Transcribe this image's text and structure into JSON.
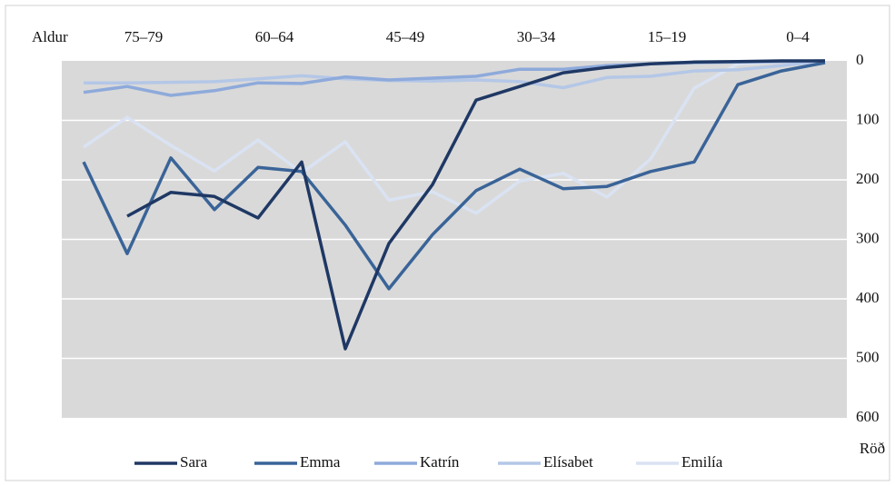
{
  "chart_data": {
    "type": "line",
    "x_label": "Aldur",
    "y_label": "Röð",
    "categories": [
      null,
      null,
      "75–79",
      null,
      null,
      "60–64",
      null,
      null,
      "45–49",
      null,
      null,
      "30–34",
      null,
      null,
      "15–19",
      null,
      null,
      "0–4"
    ],
    "ylim": [
      0,
      600
    ],
    "yticks": [
      0,
      100,
      200,
      300,
      400,
      500,
      600
    ],
    "y_inverted": true,
    "grid": true,
    "series": [
      {
        "name": "Sara",
        "color": "#1f3864",
        "values": [
          null,
          261,
          221,
          228,
          264,
          170,
          484,
          307,
          208,
          66,
          43,
          20,
          11,
          5,
          2,
          1,
          0,
          0
        ]
      },
      {
        "name": "Emma",
        "color": "#3a6498",
        "values": [
          170,
          324,
          163,
          250,
          179,
          186,
          276,
          383,
          292,
          218,
          182,
          215,
          211,
          186,
          170,
          40,
          17,
          3
        ]
      },
      {
        "name": "Katrín",
        "color": "#8eaadb",
        "values": [
          53,
          43,
          58,
          50,
          37,
          38,
          27,
          32,
          29,
          26,
          14,
          14,
          8,
          5,
          3,
          2,
          1,
          0
        ]
      },
      {
        "name": "Elísabet",
        "color": "#b4c7e7",
        "values": [
          37,
          37,
          36,
          35,
          30,
          25,
          30,
          33,
          34,
          32,
          35,
          45,
          28,
          26,
          17,
          15,
          8,
          0
        ]
      },
      {
        "name": "Emilía",
        "color": "#dae3f3",
        "values": [
          145,
          95,
          142,
          185,
          133,
          188,
          136,
          234,
          220,
          256,
          202,
          189,
          229,
          165,
          46,
          5,
          1,
          0
        ]
      }
    ]
  }
}
